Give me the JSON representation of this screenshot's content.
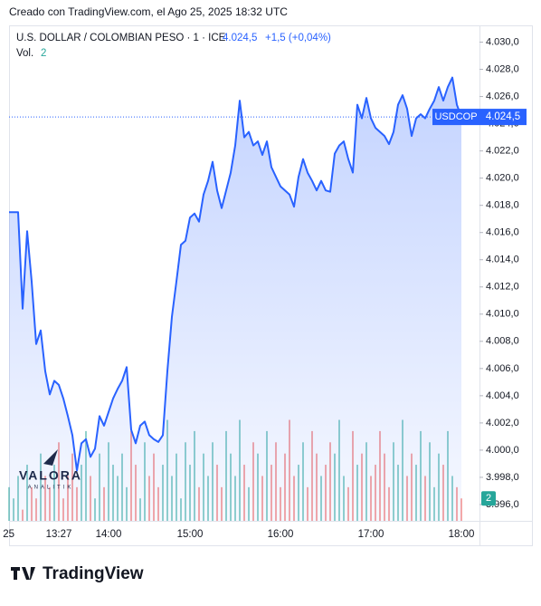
{
  "header": "Creado con TradingView.com, el Ago 25, 2025 18:32 UTC",
  "footer": "TradingView",
  "watermark": {
    "title": "VALORA",
    "subtitle": "ANALITIK"
  },
  "chart_data": {
    "type": "line",
    "title": "U.S. DOLLAR / COLOMBIAN PESO · 1 · ICE",
    "last_label": "4.024,5",
    "change_label": "+1,5 (+0,04%)",
    "symbol": "USDCOP",
    "volume_title": "Vol.",
    "categories": [
      "25",
      null,
      null,
      null,
      null,
      null,
      null,
      null,
      null,
      null,
      null,
      "13:27",
      null,
      null,
      null,
      null,
      null,
      null,
      null,
      null,
      null,
      null,
      "14:00",
      null,
      null,
      null,
      null,
      null,
      null,
      null,
      null,
      null,
      null,
      null,
      null,
      null,
      null,
      null,
      null,
      null,
      "15:00",
      null,
      null,
      null,
      null,
      null,
      null,
      null,
      null,
      null,
      null,
      null,
      null,
      null,
      null,
      null,
      null,
      null,
      null,
      null,
      "16:00",
      null,
      null,
      null,
      null,
      null,
      null,
      null,
      null,
      null,
      null,
      null,
      null,
      null,
      null,
      null,
      null,
      null,
      null,
      null,
      "17:00",
      null,
      null,
      null,
      null,
      null,
      null,
      null,
      null,
      null,
      null,
      null,
      null,
      null,
      null,
      null,
      null,
      null,
      null,
      null,
      "18:00"
    ],
    "series": [
      {
        "name": "USDCOP",
        "color": "#2962ff",
        "values": [
          4017.5,
          4017.5,
          4017.5,
          4010.4,
          4016.1,
          4012.4,
          4007.8,
          4008.8,
          4005.8,
          4004.1,
          4005.1,
          4004.8,
          4003.8,
          4002.5,
          4001.1,
          3998.5,
          4000.5,
          4000.8,
          3999.5,
          4000.1,
          4002.5,
          4001.8,
          4002.8,
          4003.8,
          4004.5,
          4005.1,
          4006.1,
          4001.5,
          4000.5,
          4001.8,
          4002.1,
          4001.1,
          4000.8,
          4000.6,
          4001.1,
          4005.8,
          4009.8,
          4012.4,
          4015.1,
          4015.4,
          4017.1,
          4017.4,
          4016.8,
          4018.8,
          4019.8,
          4021.2,
          4019.1,
          4017.8,
          4019.1,
          4020.4,
          4022.4,
          4025.7,
          4023.0,
          4023.4,
          4022.4,
          4022.7,
          4021.7,
          4022.7,
          4020.8,
          4020.1,
          4019.4,
          4019.1,
          4018.8,
          4017.9,
          4020.1,
          4021.4,
          4020.4,
          4019.8,
          4019.1,
          4019.8,
          4019.1,
          4019.0,
          4021.8,
          4022.4,
          4022.7,
          4021.4,
          4020.4,
          4025.4,
          4024.4,
          4025.9,
          4024.4,
          4023.7,
          4023.4,
          4023.1,
          4022.5,
          4023.4,
          4025.4,
          4026.1,
          4025.1,
          4023.1,
          4024.4,
          4024.7,
          4024.4,
          4025.1,
          4025.7,
          4026.7,
          4025.7,
          4026.7,
          4027.4,
          4025.4,
          4024.5
        ]
      }
    ],
    "volume": [
      3,
      2,
      4,
      1,
      5,
      3,
      2,
      6,
      4,
      3,
      5,
      7,
      2,
      4,
      6,
      3,
      5,
      8,
      4,
      2,
      6,
      3,
      7,
      5,
      4,
      6,
      3,
      8,
      5,
      2,
      7,
      4,
      6,
      3,
      5,
      9,
      4,
      6,
      2,
      7,
      5,
      8,
      3,
      6,
      4,
      7,
      5,
      3,
      8,
      6,
      4,
      9,
      5,
      3,
      7,
      6,
      4,
      8,
      5,
      7,
      3,
      6,
      9,
      4,
      5,
      7,
      3,
      8,
      6,
      4,
      5,
      7,
      6,
      9,
      4,
      3,
      8,
      5,
      6,
      7,
      4,
      5,
      8,
      6,
      3,
      7,
      5,
      9,
      4,
      6,
      5,
      8,
      4,
      7,
      3,
      6,
      5,
      8,
      4,
      3,
      2
    ],
    "volume_colors": {
      "up": "#26a69a",
      "down": "#ef5350"
    },
    "vlim": [
      0,
      44
    ],
    "ylim": [
      3994.8,
      4031.1
    ],
    "yticks": [
      {
        "value": 3996,
        "label": "3.996,0"
      },
      {
        "value": 3998,
        "label": "3.998,0"
      },
      {
        "value": 4000,
        "label": "4.000,0"
      },
      {
        "value": 4002,
        "label": "4.002,0"
      },
      {
        "value": 4004,
        "label": "4.004,0"
      },
      {
        "value": 4006,
        "label": "4.006,0"
      },
      {
        "value": 4008,
        "label": "4.008,0"
      },
      {
        "value": 4010,
        "label": "4.010,0"
      },
      {
        "value": 4012,
        "label": "4.012,0"
      },
      {
        "value": 4014,
        "label": "4.014,0"
      },
      {
        "value": 4016,
        "label": "4.016,0"
      },
      {
        "value": 4018,
        "label": "4.018,0"
      },
      {
        "value": 4020,
        "label": "4.020,0"
      },
      {
        "value": 4022,
        "label": "4.022,0"
      },
      {
        "value": 4024,
        "label": "4.024,0"
      },
      {
        "value": 4026,
        "label": "4.026,0"
      },
      {
        "value": 4028,
        "label": "4.028,0"
      },
      {
        "value": 4030,
        "label": "4.030,0"
      }
    ],
    "grid": false
  }
}
